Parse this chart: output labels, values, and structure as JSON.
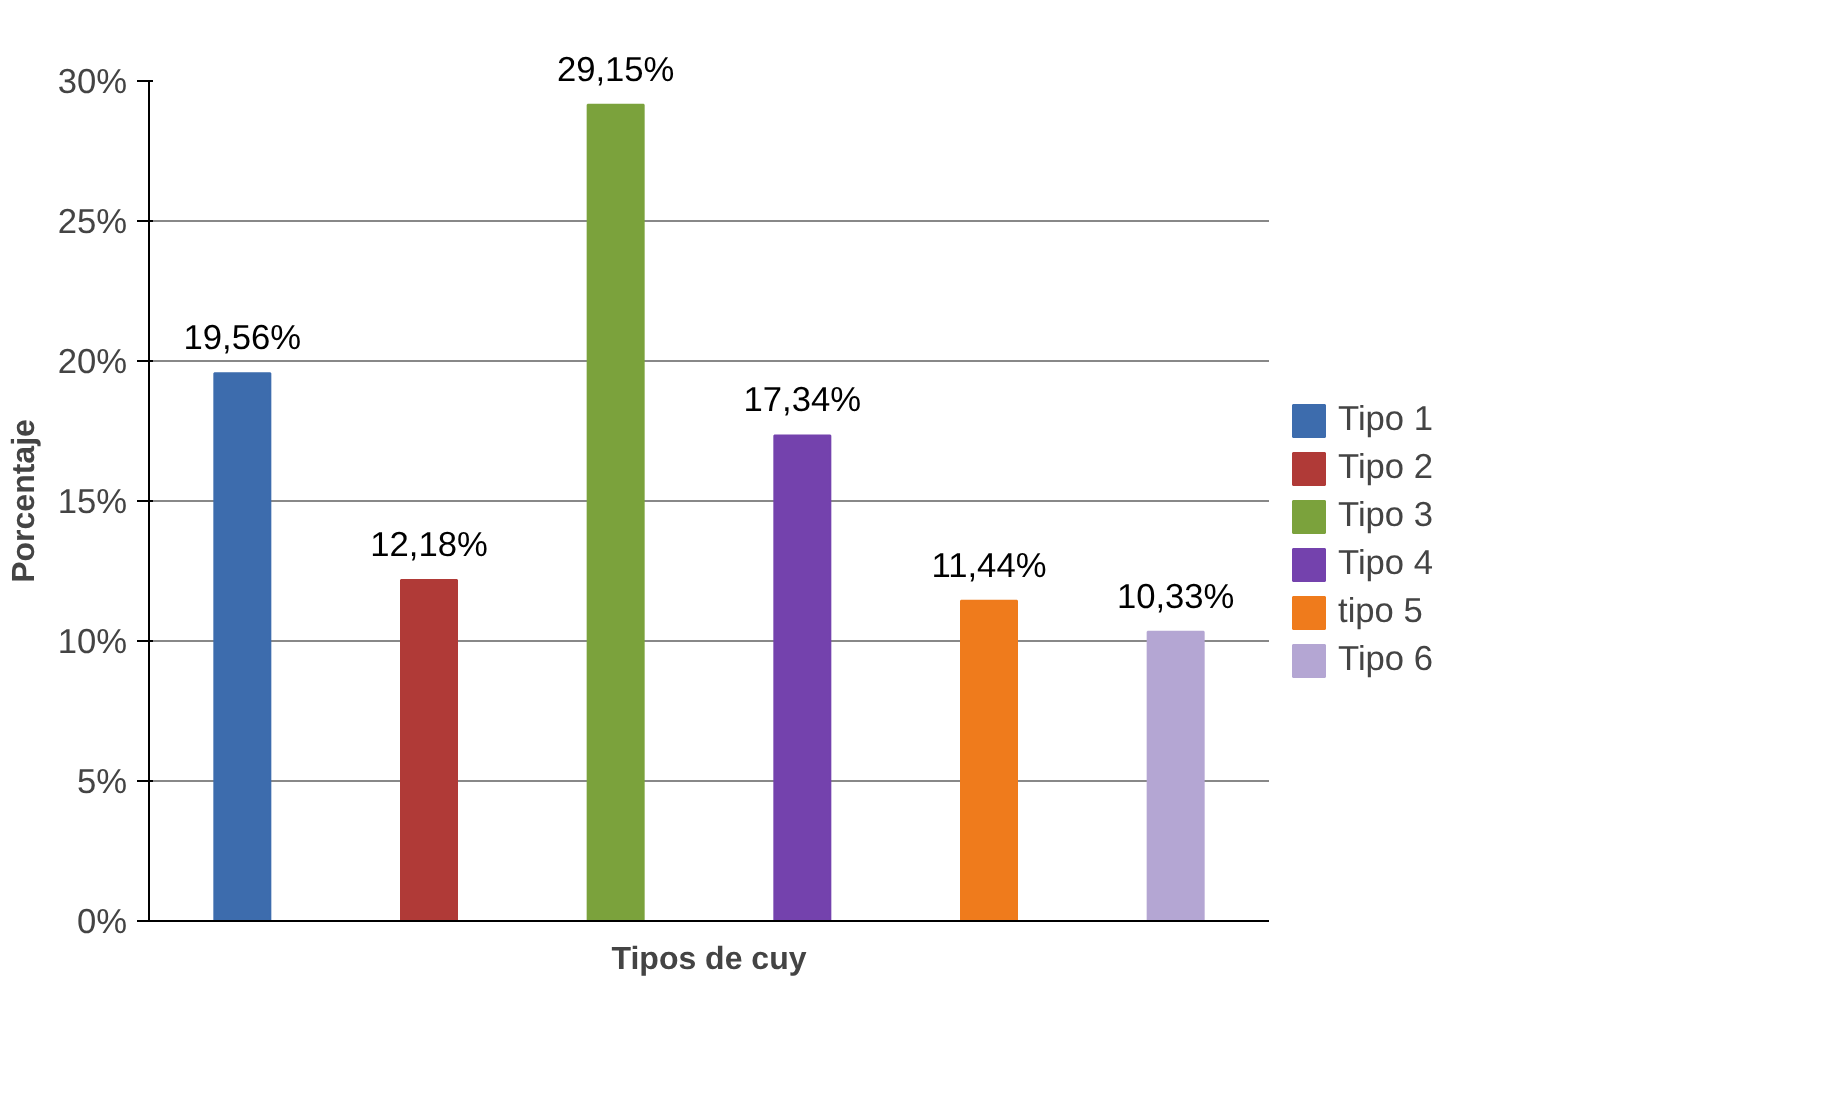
{
  "chart_data": {
    "type": "bar",
    "xlabel": "Tipos de cuy",
    "ylabel": "Porcentaje",
    "categories": [
      null,
      null,
      null,
      null,
      null,
      null
    ],
    "series": [
      {
        "name": "Tipo 1",
        "color": "#3d6cad",
        "values": [
          19.56,
          null,
          null,
          null,
          null,
          null
        ],
        "value_labels": [
          "19,56%",
          null,
          null,
          null,
          null,
          null
        ]
      },
      {
        "name": "Tipo 2",
        "color": "#b03a37",
        "values": [
          null,
          12.18,
          null,
          null,
          null,
          null
        ],
        "value_labels": [
          null,
          "12,18%",
          null,
          null,
          null,
          null
        ]
      },
      {
        "name": "Tipo 3",
        "color": "#7ba23c",
        "values": [
          null,
          null,
          29.15,
          null,
          null,
          null
        ],
        "value_labels": [
          null,
          null,
          "29,15%",
          null,
          null,
          null
        ]
      },
      {
        "name": "Tipo 4",
        "color": "#7442ad",
        "values": [
          null,
          null,
          null,
          17.34,
          null,
          null
        ],
        "value_labels": [
          null,
          null,
          null,
          "17,34%",
          null,
          null
        ]
      },
      {
        "name": "tipo 5",
        "color": "#ef7b1c",
        "values": [
          null,
          null,
          null,
          null,
          11.44,
          null
        ],
        "value_labels": [
          null,
          null,
          null,
          null,
          "11,44%",
          null
        ]
      },
      {
        "name": "Tipo 6",
        "color": "#b4a6d3",
        "values": [
          null,
          null,
          null,
          null,
          null,
          10.33
        ],
        "value_labels": [
          null,
          null,
          null,
          null,
          null,
          "10,33%"
        ]
      }
    ],
    "ylim": [
      0,
      30
    ],
    "yticks": [
      {
        "value": 0,
        "label": "0%"
      },
      {
        "value": 5,
        "label": "5%"
      },
      {
        "value": 10,
        "label": "10%"
      },
      {
        "value": 15,
        "label": "15%"
      },
      {
        "value": 20,
        "label": "20%"
      },
      {
        "value": 25,
        "label": "25%"
      },
      {
        "value": 30,
        "label": "30%"
      }
    ],
    "grid": "y",
    "legend": "right"
  }
}
